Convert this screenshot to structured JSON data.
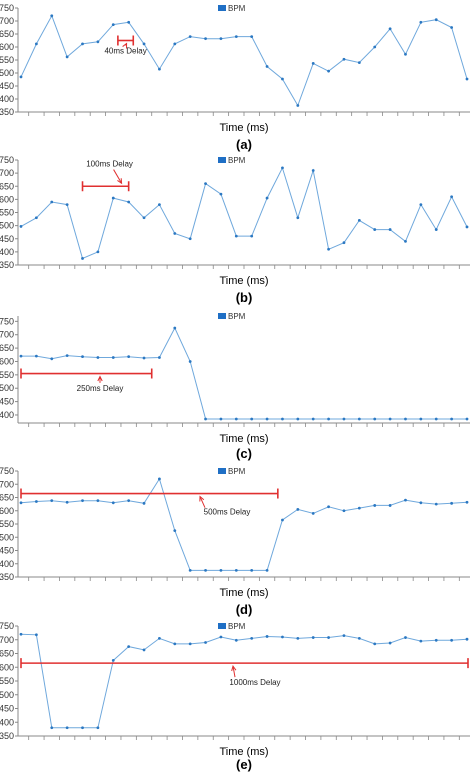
{
  "chart_data": [
    {
      "type": "line",
      "panel_label": "(a)",
      "xlabel": "Time (ms)",
      "ylabel": "",
      "ylim": [
        350,
        750
      ],
      "yticks": [
        350,
        400,
        450,
        500,
        550,
        600,
        650,
        700,
        750
      ],
      "legend": "top",
      "grid": false,
      "series": [
        {
          "name": "BPM",
          "color": "#6fa8dc",
          "values": [
            485,
            612,
            720,
            562,
            612,
            620,
            686,
            695,
            612,
            515,
            612,
            640,
            632,
            632,
            640,
            640,
            525,
            477,
            375,
            537,
            507,
            553,
            540,
            600,
            670,
            572,
            695,
            705,
            675,
            477
          ]
        }
      ],
      "annotation": {
        "text": "40ms Delay",
        "start_index": 6.3,
        "end_index": 7.3
      }
    },
    {
      "type": "line",
      "panel_label": "(b)",
      "xlabel": "Time (ms)",
      "ylabel": "",
      "ylim": [
        350,
        750
      ],
      "yticks": [
        350,
        400,
        450,
        500,
        550,
        600,
        650,
        700,
        750
      ],
      "legend": "top",
      "grid": false,
      "series": [
        {
          "name": "BPM",
          "color": "#6fa8dc",
          "values": [
            497,
            530,
            590,
            580,
            375,
            400,
            605,
            590,
            530,
            580,
            470,
            450,
            660,
            620,
            460,
            460,
            605,
            720,
            530,
            710,
            410,
            435,
            520,
            485,
            485,
            440,
            580,
            485,
            610,
            495
          ]
        }
      ],
      "annotation": {
        "text": "100ms Delay",
        "start_index": 4,
        "end_index": 7
      }
    },
    {
      "type": "line",
      "panel_label": "(c)",
      "xlabel": "Time (ms)",
      "ylabel": "",
      "ylim": [
        370,
        770
      ],
      "yticks": [
        400,
        450,
        500,
        550,
        600,
        650,
        700,
        750
      ],
      "legend": "top",
      "grid": false,
      "series": [
        {
          "name": "BPM",
          "color": "#6fa8dc",
          "values": [
            620,
            620,
            610,
            622,
            618,
            615,
            615,
            618,
            613,
            615,
            725,
            600,
            385,
            385,
            385,
            385,
            385,
            385,
            385,
            385,
            385,
            385,
            385,
            385,
            385,
            385,
            385,
            385,
            385,
            385
          ]
        }
      ],
      "annotation": {
        "text": "250ms Delay",
        "start_index": 0,
        "end_index": 8.5
      }
    },
    {
      "type": "line",
      "panel_label": "(d)",
      "xlabel": "Time (ms)",
      "ylabel": "",
      "ylim": [
        350,
        750
      ],
      "yticks": [
        350,
        400,
        450,
        500,
        550,
        600,
        650,
        700,
        750
      ],
      "legend": "top",
      "grid": false,
      "series": [
        {
          "name": "BPM",
          "color": "#6fa8dc",
          "values": [
            630,
            635,
            638,
            632,
            638,
            638,
            630,
            638,
            628,
            720,
            525,
            375,
            375,
            375,
            375,
            375,
            375,
            565,
            605,
            590,
            615,
            600,
            610,
            620,
            620,
            640,
            630,
            625,
            628,
            632
          ]
        }
      ],
      "annotation": {
        "text": "500ms Delay",
        "start_index": 0,
        "end_index": 16.7
      }
    },
    {
      "type": "line",
      "panel_label": "(e)",
      "xlabel": "Time (ms)",
      "ylabel": "",
      "ylim": [
        350,
        750
      ],
      "yticks": [
        350,
        400,
        450,
        500,
        550,
        600,
        650,
        700,
        750
      ],
      "legend": "top",
      "grid": false,
      "series": [
        {
          "name": "BPM",
          "color": "#6fa8dc",
          "values": [
            720,
            718,
            380,
            380,
            380,
            380,
            625,
            675,
            663,
            705,
            685,
            685,
            690,
            710,
            698,
            705,
            712,
            710,
            705,
            708,
            708,
            715,
            705,
            685,
            688,
            708,
            695,
            698,
            698,
            702
          ]
        }
      ],
      "annotation": {
        "text": "1000ms Delay",
        "start_index": 0,
        "end_index": 29.5
      }
    }
  ],
  "colors": {
    "line": "#6fa8dc",
    "annotation": "#e03030",
    "axis": "#888888",
    "legend_swatch": "#1f6fc5"
  }
}
